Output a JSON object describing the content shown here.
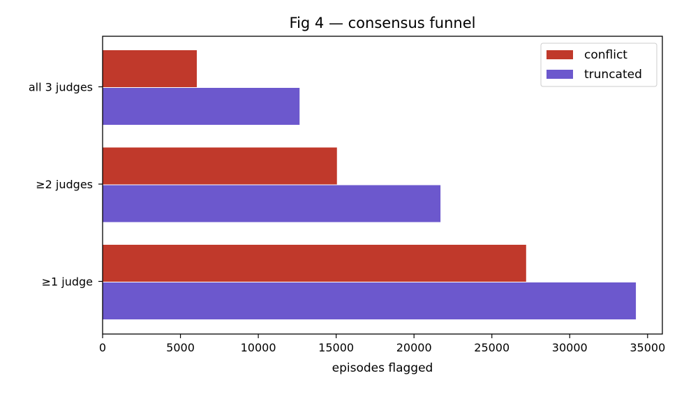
{
  "chart_data": {
    "type": "bar",
    "orientation": "horizontal",
    "title": "Fig 4 — consensus funnel",
    "xlabel": "episodes flagged",
    "ylabel": "",
    "categories": [
      "all 3 judges",
      "≥2 judges",
      "≥1 judge"
    ],
    "series": [
      {
        "name": "conflict",
        "color": "#c0392b",
        "values": [
          6050,
          15050,
          27200
        ]
      },
      {
        "name": "truncated",
        "color": "#6c58cd",
        "values": [
          12650,
          21700,
          34250
        ]
      }
    ],
    "xlim": [
      0,
      35950
    ],
    "xticks": [
      0,
      5000,
      10000,
      15000,
      20000,
      25000,
      30000,
      35000
    ],
    "grid": false,
    "legend_position": "top-right"
  }
}
